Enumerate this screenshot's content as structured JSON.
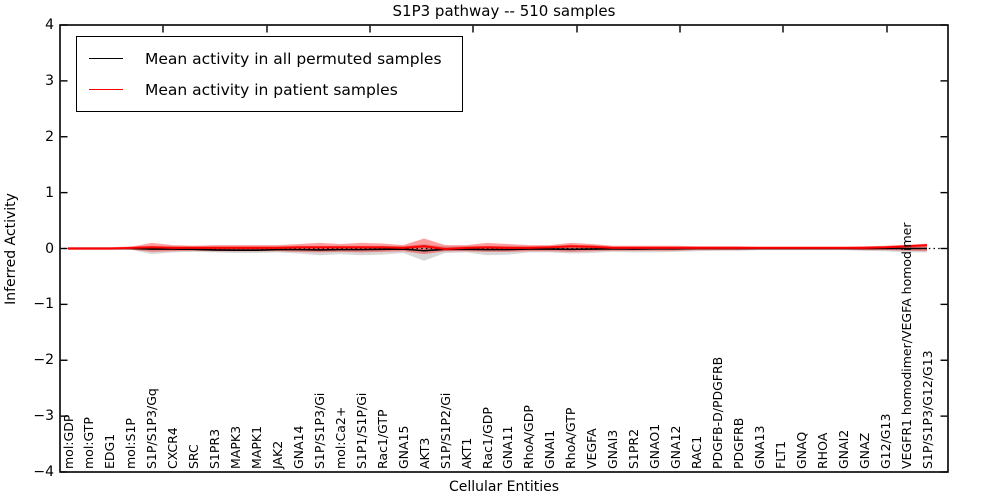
{
  "title": "S1P3 pathway -- 510 samples",
  "colors": {
    "permuted_line": "#000000",
    "patient_line": "#ff0000",
    "permuted_band": "#8c8c8c",
    "patient_band": "#ff0000",
    "frame": "#000000",
    "background": "#ffffff"
  },
  "chart_data": {
    "type": "line",
    "title": "S1P3 pathway -- 510 samples",
    "xlabel": "Cellular Entities",
    "ylabel": "Inferred Activity",
    "ylim": [
      -4,
      4
    ],
    "yticks": [
      -4,
      -3,
      -2,
      -1,
      0,
      1,
      2,
      3,
      4
    ],
    "ytick_labels": [
      "−4",
      "−3",
      "−2",
      "−1",
      "0",
      "1",
      "2",
      "3",
      "4"
    ],
    "grid": false,
    "legend_position": "upper left",
    "zero_reference_line": "dotted black at y=0",
    "categories": [
      "mol:GDP",
      "mol:GTP",
      "EDG1",
      "mol:S1P",
      "S1P/S1P3/Gq",
      "CXCR4",
      "SRC",
      "S1PR3",
      "MAPK3",
      "MAPK1",
      "JAK2",
      "GNA14",
      "S1P/S1P3/Gi",
      "mol:Ca2+",
      "S1P1/S1P/Gi",
      "Rac1/GTP",
      "GNA15",
      "AKT3",
      "S1P/S1P2/Gi",
      "AKT1",
      "Rac1/GDP",
      "GNA11",
      "RhoA/GDP",
      "GNAI1",
      "RhoA/GTP",
      "VEGFA",
      "GNAI3",
      "S1PR2",
      "GNAO1",
      "GNA12",
      "RAC1",
      "PDGFB-D/PDGFRB",
      "PDGFRB",
      "GNA13",
      "FLT1",
      "GNAQ",
      "RHOA",
      "GNAI2",
      "GNAZ",
      "G12/G13",
      "VEGFR1 homodimer/VEGFA homodimer",
      "S1P/S1P3/G12/G13"
    ],
    "series": [
      {
        "name": "Mean activity in all permuted samples",
        "color": "#000000",
        "values": [
          0,
          0,
          0,
          0,
          -0.01,
          -0.01,
          -0.015,
          -0.025,
          -0.03,
          -0.03,
          -0.02,
          -0.02,
          -0.025,
          -0.02,
          -0.02,
          -0.015,
          -0.01,
          -0.04,
          -0.015,
          -0.015,
          -0.02,
          -0.02,
          -0.01,
          -0.01,
          -0.015,
          -0.01,
          -0.005,
          -0.01,
          -0.005,
          -0.005,
          0,
          0,
          0,
          0,
          0,
          0,
          0,
          0,
          0,
          0,
          0,
          0
        ]
      },
      {
        "name": "Mean activity in patient samples",
        "color": "#ff0000",
        "values": [
          0,
          0,
          0,
          0.01,
          0.02,
          0.01,
          0.01,
          0.01,
          0.01,
          0.01,
          0.01,
          0.02,
          0.02,
          0.02,
          0.02,
          0.02,
          0.01,
          0.04,
          -0.01,
          0.01,
          0.02,
          0.01,
          0.01,
          0.02,
          0.04,
          0.03,
          0.01,
          0.01,
          0.01,
          0.01,
          0.01,
          0.01,
          0.01,
          0.01,
          0.01,
          0.01,
          0.01,
          0.01,
          0.01,
          0.02,
          0.04,
          0.06
        ]
      }
    ],
    "bands": {
      "permuted_std": {
        "upper": [
          0.01,
          0.01,
          0.01,
          0.02,
          0.05,
          0.04,
          0.04,
          0.04,
          0.04,
          0.04,
          0.04,
          0.05,
          0.05,
          0.05,
          0.05,
          0.05,
          0.04,
          0.08,
          0.04,
          0.04,
          0.05,
          0.05,
          0.04,
          0.04,
          0.05,
          0.04,
          0.03,
          0.03,
          0.03,
          0.03,
          0.03,
          0.02,
          0.02,
          0.02,
          0.02,
          0.02,
          0.02,
          0.02,
          0.02,
          0.03,
          0.04,
          0.04
        ],
        "lower": [
          -0.01,
          -0.01,
          -0.01,
          -0.02,
          -0.1,
          -0.07,
          -0.06,
          -0.07,
          -0.08,
          -0.08,
          -0.07,
          -0.09,
          -0.12,
          -0.1,
          -0.12,
          -0.11,
          -0.08,
          -0.22,
          -0.08,
          -0.07,
          -0.12,
          -0.11,
          -0.07,
          -0.07,
          -0.09,
          -0.08,
          -0.06,
          -0.07,
          -0.07,
          -0.06,
          -0.05,
          -0.04,
          -0.04,
          -0.03,
          -0.03,
          -0.03,
          -0.03,
          -0.03,
          -0.04,
          -0.05,
          -0.07,
          -0.07
        ]
      },
      "patient_std": {
        "upper": [
          0.02,
          0.02,
          0.02,
          0.03,
          0.1,
          0.06,
          0.05,
          0.06,
          0.06,
          0.06,
          0.06,
          0.08,
          0.1,
          0.08,
          0.1,
          0.09,
          0.06,
          0.18,
          0.06,
          0.06,
          0.1,
          0.08,
          0.06,
          0.06,
          0.1,
          0.08,
          0.05,
          0.05,
          0.05,
          0.05,
          0.04,
          0.04,
          0.04,
          0.03,
          0.03,
          0.03,
          0.03,
          0.03,
          0.04,
          0.05,
          0.06,
          0.08
        ],
        "lower": [
          -0.02,
          -0.02,
          -0.02,
          -0.02,
          -0.06,
          -0.05,
          -0.04,
          -0.05,
          -0.05,
          -0.05,
          -0.05,
          -0.06,
          -0.07,
          -0.06,
          -0.07,
          -0.06,
          -0.05,
          -0.1,
          -0.05,
          -0.05,
          -0.06,
          -0.06,
          -0.05,
          -0.05,
          -0.06,
          -0.05,
          -0.04,
          -0.04,
          -0.04,
          -0.04,
          -0.03,
          -0.03,
          -0.03,
          -0.02,
          -0.02,
          -0.02,
          -0.02,
          -0.02,
          -0.03,
          -0.03,
          -0.04,
          -0.05
        ],
        "inner_halfwidth": 0.025
      }
    },
    "legend": [
      {
        "label": "Mean activity in all permuted samples",
        "color": "#000000"
      },
      {
        "label": "Mean activity in patient samples",
        "color": "#ff0000"
      }
    ]
  }
}
